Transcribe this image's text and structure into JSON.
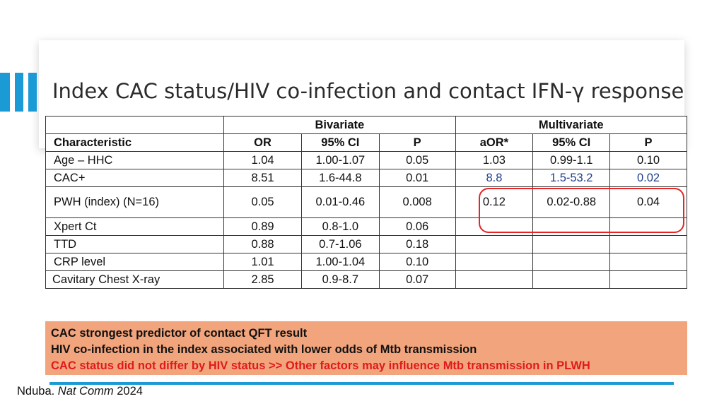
{
  "title": "Index CAC status/HIV co-infection and contact IFN-γ response",
  "table": {
    "group_headers": {
      "bivariate": "Bivariate",
      "multivariate": "Multivariate"
    },
    "columns": [
      "Characteristic",
      "OR",
      "95% CI",
      "P",
      "aOR*",
      "95% CI",
      "P"
    ],
    "rows": [
      {
        "characteristic": "Age – HHC",
        "or": "1.04",
        "ci": "1.00-1.07",
        "p": "0.05",
        "aor": "1.03",
        "aci": "0.99-1.1",
        "ap": "0.10"
      },
      {
        "characteristic": "CAC+",
        "or": "8.51",
        "ci": "1.6-44.8",
        "p": "0.01",
        "aor": "8.8",
        "aci": "1.5-53.2",
        "ap": "0.02"
      },
      {
        "characteristic": "PWH (index) (N=16)",
        "or": "0.05",
        "ci": "0.01-0.46",
        "p": "0.008",
        "aor": "0.12",
        "aci": "0.02-0.88",
        "ap": "0.04"
      },
      {
        "characteristic": "Xpert Ct",
        "or": "0.89",
        "ci": "0.8-1.0",
        "p": "0.06",
        "aor": "",
        "aci": "",
        "ap": ""
      },
      {
        "characteristic": "TTD",
        "or": "0.88",
        "ci": "0.7-1.06",
        "p": "0.18",
        "aor": "",
        "aci": "",
        "ap": ""
      },
      {
        "characteristic": "CRP level",
        "or": "1.01",
        "ci": "1.00-1.04",
        "p": "0.10",
        "aor": "",
        "aci": "",
        "ap": ""
      },
      {
        "characteristic": "Cavitary Chest X-ray",
        "or": "2.85",
        "ci": "0.9-8.7",
        "p": "0.07",
        "aor": "",
        "aci": "",
        "ap": ""
      }
    ]
  },
  "callout": {
    "line1": "CAC strongest predictor of contact QFT result",
    "line2": "HIV co-infection in the index associated with lower odds of Mtb transmission",
    "line3": "CAC status did not differ by HIV status >> Other factors may influence Mtb transmission in PLWH"
  },
  "citation": {
    "author": "Nduba. ",
    "journal": "Nat Comm",
    "year": " 2024"
  },
  "colors": {
    "accent_blue": "#1b9ad6",
    "highlight_red": "#e32626",
    "callout_bg": "#f2a57d",
    "callout_red_text": "#e01a1a",
    "value_blue": "#1f3f8c"
  }
}
